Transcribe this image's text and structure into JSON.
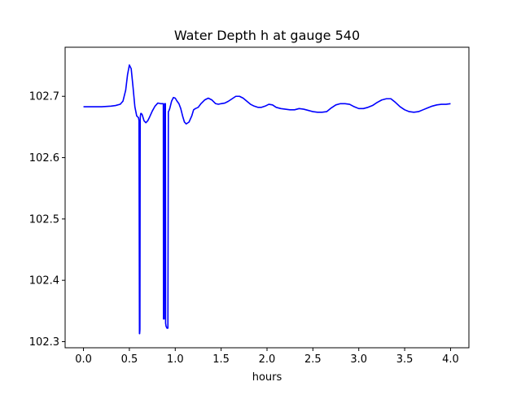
{
  "chart_data": {
    "type": "line",
    "title": "Water Depth h at gauge 540",
    "xlabel": "hours",
    "ylabel": "",
    "xlim": [
      -0.2,
      4.2
    ],
    "ylim": [
      102.29,
      102.78
    ],
    "xticks": [
      0.0,
      0.5,
      1.0,
      1.5,
      2.0,
      2.5,
      3.0,
      3.5,
      4.0
    ],
    "xtick_labels": [
      "0.0",
      "0.5",
      "1.0",
      "1.5",
      "2.0",
      "2.5",
      "3.0",
      "3.5",
      "4.0"
    ],
    "yticks": [
      102.3,
      102.4,
      102.5,
      102.6,
      102.7
    ],
    "ytick_labels": [
      "102.3",
      "102.4",
      "102.5",
      "102.6",
      "102.7"
    ],
    "grid": false,
    "legend": false,
    "series": [
      {
        "color": "#0000ff",
        "x": [
          0.0,
          0.1,
          0.2,
          0.3,
          0.35,
          0.4,
          0.43,
          0.46,
          0.48,
          0.5,
          0.52,
          0.54,
          0.56,
          0.58,
          0.6,
          0.605,
          0.61,
          0.612,
          0.615,
          0.618,
          0.62,
          0.625,
          0.63,
          0.64,
          0.65,
          0.66,
          0.68,
          0.7,
          0.72,
          0.75,
          0.78,
          0.81,
          0.84,
          0.86,
          0.87,
          0.872,
          0.875,
          0.88,
          0.885,
          0.89,
          0.893,
          0.895,
          0.9,
          0.91,
          0.92,
          0.925,
          0.93,
          0.935,
          0.94,
          0.95,
          0.96,
          0.98,
          1.0,
          1.02,
          1.04,
          1.06,
          1.08,
          1.1,
          1.12,
          1.15,
          1.18,
          1.2,
          1.22,
          1.25,
          1.28,
          1.32,
          1.36,
          1.4,
          1.44,
          1.47,
          1.5,
          1.54,
          1.58,
          1.62,
          1.66,
          1.7,
          1.74,
          1.78,
          1.82,
          1.86,
          1.9,
          1.94,
          1.98,
          2.02,
          2.06,
          2.1,
          2.15,
          2.2,
          2.25,
          2.3,
          2.35,
          2.4,
          2.45,
          2.5,
          2.55,
          2.6,
          2.65,
          2.7,
          2.75,
          2.8,
          2.85,
          2.9,
          2.95,
          3.0,
          3.05,
          3.1,
          3.15,
          3.2,
          3.25,
          3.3,
          3.35,
          3.4,
          3.45,
          3.5,
          3.55,
          3.6,
          3.65,
          3.7,
          3.75,
          3.8,
          3.85,
          3.9,
          3.95,
          4.0
        ],
        "y": [
          102.683,
          102.683,
          102.683,
          102.684,
          102.685,
          102.687,
          102.692,
          102.71,
          102.735,
          102.751,
          102.745,
          102.715,
          102.683,
          102.668,
          102.665,
          102.66,
          102.313,
          102.313,
          102.32,
          102.66,
          102.668,
          102.672,
          102.672,
          102.67,
          102.665,
          102.66,
          102.657,
          102.66,
          102.666,
          102.676,
          102.684,
          102.689,
          102.688,
          102.688,
          102.688,
          102.337,
          102.337,
          102.337,
          102.688,
          102.688,
          102.688,
          102.33,
          102.325,
          102.322,
          102.322,
          102.675,
          102.676,
          102.678,
          102.68,
          102.686,
          102.692,
          102.698,
          102.697,
          102.692,
          102.688,
          102.68,
          102.668,
          102.658,
          102.655,
          102.658,
          102.668,
          102.678,
          102.68,
          102.682,
          102.688,
          102.694,
          102.697,
          102.694,
          102.688,
          102.687,
          102.688,
          102.689,
          102.692,
          102.696,
          102.7,
          102.7,
          102.697,
          102.692,
          102.687,
          102.684,
          102.682,
          102.682,
          102.684,
          102.687,
          102.686,
          102.682,
          102.68,
          102.679,
          102.678,
          102.678,
          102.68,
          102.679,
          102.677,
          102.675,
          102.674,
          102.674,
          102.675,
          102.681,
          102.686,
          102.688,
          102.688,
          102.687,
          102.683,
          102.68,
          102.68,
          102.682,
          102.685,
          102.69,
          102.694,
          102.696,
          102.696,
          102.69,
          102.683,
          102.678,
          102.675,
          102.674,
          102.675,
          102.678,
          102.681,
          102.684,
          102.686,
          102.687,
          102.687,
          102.688
        ]
      }
    ]
  }
}
